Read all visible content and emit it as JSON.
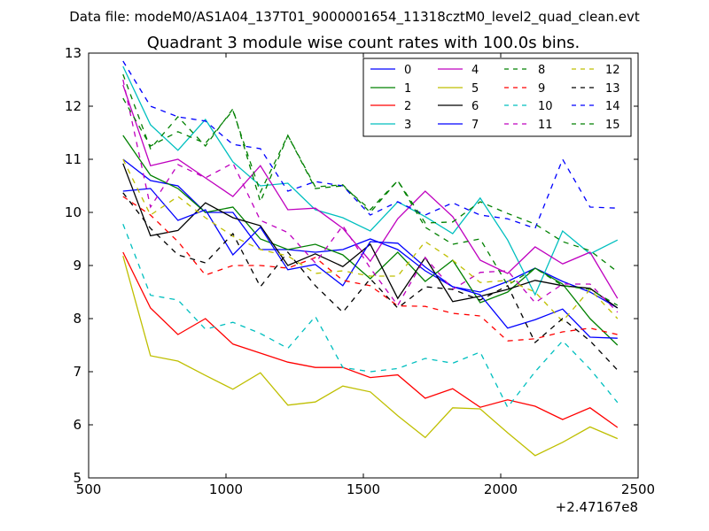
{
  "chart_data": {
    "type": "line",
    "suptitle": "Data file: modeM0/AS1A04_137T01_9000001654_11318cztM0_level2_quad_clean.evt",
    "title": "Quadrant 3 module wise count rates with 100.0s bins.",
    "xlabel": "",
    "ylabel": "",
    "x_offset_label": "+2.47167e8",
    "xlim": [
      500,
      2500
    ],
    "ylim": [
      5,
      13
    ],
    "xticks": [
      "500",
      "1000",
      "1500",
      "2000",
      "2500"
    ],
    "yticks": [
      "5",
      "6",
      "7",
      "8",
      "9",
      "10",
      "11",
      "12",
      "13"
    ],
    "grid": false,
    "legend_position": "top-right",
    "x": [
      625,
      725,
      825,
      925,
      1025,
      1125,
      1225,
      1325,
      1425,
      1525,
      1625,
      1725,
      1825,
      1925,
      2025,
      2125,
      2225,
      2325,
      2425
    ],
    "series": [
      {
        "name": "0",
        "color": "#0000ff",
        "dash": "solid",
        "values": [
          11.0,
          10.6,
          10.5,
          10.0,
          10.0,
          9.3,
          9.3,
          9.25,
          9.3,
          9.5,
          9.3,
          8.9,
          8.6,
          8.5,
          8.7,
          8.95,
          8.7,
          8.5,
          8.2
        ]
      },
      {
        "name": "1",
        "color": "#008000",
        "dash": "solid",
        "values": [
          11.45,
          10.7,
          10.45,
          10.0,
          10.1,
          9.5,
          9.3,
          9.4,
          9.2,
          8.75,
          9.25,
          8.7,
          9.1,
          8.3,
          8.5,
          8.95,
          8.65,
          8.0,
          7.5
        ]
      },
      {
        "name": "2",
        "color": "#ff0000",
        "dash": "solid",
        "values": [
          9.25,
          8.2,
          7.7,
          8.0,
          7.52,
          7.35,
          7.18,
          7.08,
          7.08,
          6.89,
          6.94,
          6.5,
          6.68,
          6.33,
          6.47,
          6.35,
          6.1,
          6.32,
          5.95
        ]
      },
      {
        "name": "3",
        "color": "#00bfbf",
        "dash": "solid",
        "values": [
          12.75,
          11.65,
          11.17,
          11.75,
          10.95,
          10.5,
          10.55,
          10.05,
          9.9,
          9.65,
          10.2,
          9.92,
          9.6,
          10.27,
          9.48,
          8.45,
          9.65,
          9.22,
          9.48
        ]
      },
      {
        "name": "4",
        "color": "#bf00bf",
        "dash": "solid",
        "values": [
          12.4,
          10.88,
          11.0,
          10.65,
          10.3,
          10.88,
          10.05,
          10.08,
          9.7,
          9.08,
          9.88,
          10.4,
          9.92,
          9.1,
          8.85,
          9.35,
          9.03,
          9.25,
          8.38
        ]
      },
      {
        "name": "5",
        "color": "#bfbf00",
        "dash": "solid",
        "values": [
          9.18,
          7.3,
          7.2,
          6.93,
          6.67,
          6.98,
          6.37,
          6.43,
          6.73,
          6.62,
          6.17,
          5.76,
          6.32,
          6.3,
          5.85,
          5.42,
          5.67,
          5.96,
          5.74
        ]
      },
      {
        "name": "6",
        "color": "#000000",
        "dash": "solid",
        "values": [
          10.92,
          9.56,
          9.66,
          10.18,
          9.9,
          9.75,
          9.0,
          9.22,
          8.98,
          9.4,
          8.38,
          9.15,
          8.32,
          8.42,
          8.55,
          8.72,
          8.62,
          8.57,
          8.2
        ]
      },
      {
        "name": "7",
        "color": "#0000ff",
        "dash": "solid",
        "values": [
          10.4,
          10.45,
          9.85,
          10.05,
          9.2,
          9.72,
          8.92,
          9.02,
          8.62,
          9.45,
          9.42,
          8.97,
          8.6,
          8.45,
          7.82,
          7.98,
          8.18,
          7.65,
          7.63
        ]
      },
      {
        "name": "8",
        "color": "#008000",
        "dash": "dashed",
        "values": [
          12.6,
          11.2,
          11.8,
          11.25,
          11.95,
          10.2,
          11.45,
          10.45,
          10.5,
          10.05,
          10.6,
          9.72,
          9.4,
          9.5,
          8.63,
          8.95,
          8.62,
          8.55,
          8.25
        ]
      },
      {
        "name": "9",
        "color": "#ff0000",
        "dash": "dashed",
        "values": [
          10.3,
          9.95,
          9.45,
          8.82,
          9.0,
          9.0,
          8.95,
          9.15,
          8.72,
          8.62,
          8.24,
          8.23,
          8.1,
          8.05,
          7.58,
          7.62,
          7.75,
          7.82,
          7.7
        ]
      },
      {
        "name": "10",
        "color": "#00bfbf",
        "dash": "dashed",
        "values": [
          9.78,
          8.44,
          8.35,
          7.8,
          7.93,
          7.72,
          7.44,
          8.04,
          7.08,
          7.0,
          7.06,
          7.25,
          7.16,
          7.37,
          6.33,
          7.0,
          7.58,
          7.05,
          6.42
        ]
      },
      {
        "name": "11",
        "color": "#bf00bf",
        "dash": "dashed",
        "values": [
          12.5,
          10.1,
          10.9,
          10.65,
          10.93,
          9.85,
          9.62,
          9.05,
          9.75,
          8.95,
          8.25,
          9.15,
          8.55,
          8.87,
          8.9,
          8.3,
          8.65,
          8.65,
          8.12
        ]
      },
      {
        "name": "12",
        "color": "#bfbf00",
        "dash": "dashed",
        "values": [
          11.0,
          9.95,
          10.3,
          9.9,
          9.55,
          9.3,
          9.18,
          8.85,
          8.9,
          8.8,
          8.8,
          9.45,
          9.1,
          8.68,
          8.72,
          8.5,
          7.95,
          8.55,
          8.0
        ]
      },
      {
        "name": "13",
        "color": "#000000",
        "dash": "dashed",
        "values": [
          10.37,
          9.7,
          9.2,
          9.05,
          9.6,
          8.6,
          9.25,
          8.62,
          8.12,
          8.75,
          8.2,
          8.6,
          8.55,
          8.35,
          8.62,
          7.55,
          8.0,
          7.58,
          7.03
        ]
      },
      {
        "name": "14",
        "color": "#0000ff",
        "dash": "dashed",
        "values": [
          12.85,
          12.0,
          11.8,
          11.72,
          11.28,
          11.2,
          10.4,
          10.58,
          10.5,
          9.95,
          10.2,
          9.95,
          10.18,
          9.95,
          9.88,
          9.7,
          11.0,
          10.1,
          10.08
        ]
      },
      {
        "name": "15",
        "color": "#008000",
        "dash": "dashed",
        "values": [
          12.15,
          11.25,
          11.52,
          11.3,
          11.92,
          10.38,
          11.45,
          10.48,
          10.52,
          10.0,
          10.6,
          9.8,
          9.82,
          10.2,
          9.98,
          9.78,
          9.45,
          9.28,
          8.88
        ]
      }
    ]
  }
}
